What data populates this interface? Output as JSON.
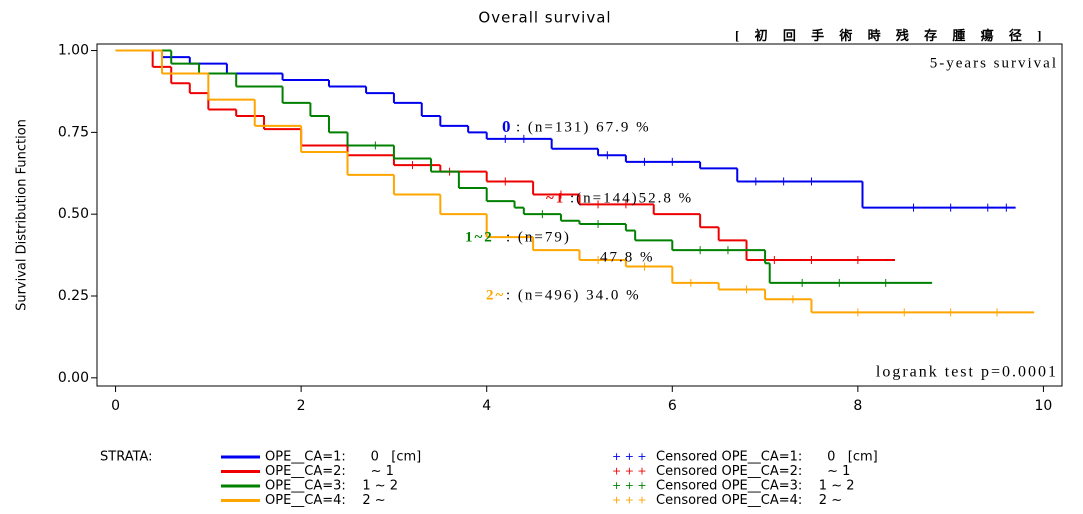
{
  "chart_data": {
    "type": "step",
    "title": "Overall survival",
    "ylabel": "Survival Distribution Function",
    "xlim": [
      -0.2,
      10.2
    ],
    "ylim": [
      -0.025,
      1.02
    ],
    "xticks": [
      0,
      2,
      4,
      6,
      8,
      10
    ],
    "yticks": [
      {
        "value": 0,
        "label": "0.00"
      },
      {
        "value": 0.25,
        "label": "0.25"
      },
      {
        "value": 0.5,
        "label": "0.50"
      },
      {
        "value": 0.75,
        "label": "0.75"
      },
      {
        "value": 1,
        "label": "1.00"
      }
    ],
    "annotations": [
      "[ 初 回 手 術 時 残 存 腫 瘍 径 ]",
      "5-years survival",
      "0",
      ": (n=131) 67.9 %",
      "~1",
      ":(n=144)52.8 %",
      "1~2",
      ": (n=79)",
      "47.8 %",
      "2~",
      ": (n=496) 34.0 %",
      "logrank test p=0.0001"
    ],
    "legend_title": "STRATA:",
    "censored_symbol": "+ + +",
    "series": [
      {
        "name": "OPE__CA=1:      0   [cm]",
        "censored_name": "Censored OPE__CA=1:      0   [cm]",
        "color": "#0000ee",
        "x": [
          0,
          0.5,
          0.8,
          1.2,
          1.8,
          2.3,
          2.7,
          3.0,
          3.3,
          3.5,
          3.8,
          4.0,
          4.7,
          5.2,
          5.5,
          6.3,
          6.7,
          8.05,
          9.7
        ],
        "values": [
          1.0,
          0.98,
          0.96,
          0.93,
          0.91,
          0.89,
          0.87,
          0.84,
          0.8,
          0.77,
          0.75,
          0.73,
          0.7,
          0.68,
          0.66,
          0.64,
          0.6,
          0.52,
          0.52
        ],
        "censored": [
          4.2,
          4.4,
          5.3,
          5.7,
          6.0,
          6.9,
          7.2,
          7.5,
          8.6,
          9.0,
          9.4,
          9.6
        ]
      },
      {
        "name": "OPE__CA=2:      ~ 1",
        "censored_name": "Censored OPE__CA=2:      ~ 1",
        "color": "#ee0000",
        "x": [
          0,
          0.4,
          0.6,
          0.8,
          1.0,
          1.3,
          1.6,
          2.0,
          2.5,
          3.0,
          3.5,
          4.0,
          4.5,
          5.0,
          5.8,
          6.3,
          6.5,
          6.8,
          8.4
        ],
        "values": [
          1.0,
          0.95,
          0.9,
          0.87,
          0.82,
          0.8,
          0.76,
          0.71,
          0.68,
          0.65,
          0.63,
          0.6,
          0.56,
          0.53,
          0.5,
          0.46,
          0.42,
          0.36,
          0.36
        ],
        "censored": [
          3.2,
          3.6,
          4.2,
          4.8,
          5.2,
          5.5,
          7.1,
          7.5,
          8.0
        ]
      },
      {
        "name": "OPE__CA=3:    1 ~ 2",
        "censored_name": "Censored OPE__CA=3:    1 ~ 2",
        "color": "#008000",
        "x": [
          0,
          0.6,
          0.9,
          1.3,
          1.8,
          2.1,
          2.3,
          2.5,
          3.0,
          3.4,
          3.7,
          4.0,
          4.3,
          4.4,
          4.8,
          5.0,
          5.5,
          5.6,
          6.0,
          7.0,
          7.05,
          8.8
        ],
        "values": [
          1.0,
          0.96,
          0.93,
          0.89,
          0.84,
          0.8,
          0.75,
          0.71,
          0.67,
          0.63,
          0.58,
          0.54,
          0.52,
          0.5,
          0.48,
          0.47,
          0.45,
          0.42,
          0.39,
          0.35,
          0.29,
          0.29
        ],
        "censored": [
          2.8,
          4.6,
          5.2,
          6.3,
          6.6,
          7.4,
          7.8,
          8.3
        ]
      },
      {
        "name": "OPE__CA=4:    2 ~",
        "censored_name": "Censored OPE__CA=4:    2 ~",
        "color": "#ffa500",
        "x": [
          0,
          0.5,
          1.0,
          1.5,
          2.0,
          2.5,
          3.0,
          3.5,
          4.0,
          4.5,
          5.0,
          5.5,
          6.0,
          6.5,
          7.0,
          7.5,
          9.9
        ],
        "values": [
          1.0,
          0.93,
          0.85,
          0.77,
          0.69,
          0.62,
          0.56,
          0.5,
          0.43,
          0.39,
          0.36,
          0.34,
          0.29,
          0.27,
          0.24,
          0.2,
          0.2
        ],
        "censored": [
          5.2,
          5.7,
          6.2,
          6.8,
          7.3,
          8.0,
          8.5,
          9.0,
          9.5
        ]
      }
    ]
  }
}
